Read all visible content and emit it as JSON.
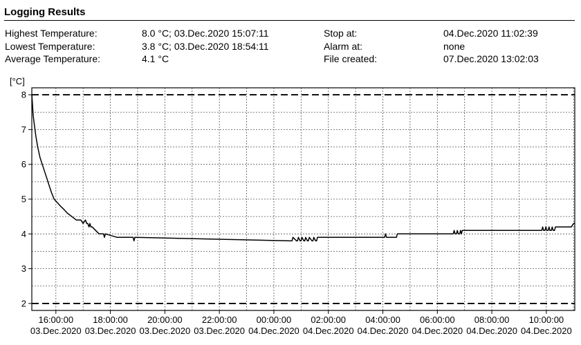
{
  "header": {
    "title": "Logging Results"
  },
  "summary": {
    "highest_label": "Highest Temperature:",
    "highest_value": "8.0 °C; 03.Dec.2020 15:07:11",
    "lowest_label": "Lowest Temperature:",
    "lowest_value": "3.8 °C; 03.Dec.2020 18:54:11",
    "average_label": "Average Temperature:",
    "average_value": "4.1 °C",
    "stop_label": "Stop at:",
    "stop_value": "04.Dec.2020 11:02:39",
    "alarm_label": "Alarm at:",
    "alarm_value": "none",
    "file_label": "File created:",
    "file_value": "07.Dec.2020 13:02:03"
  },
  "chart_data": {
    "type": "line",
    "ylabel": "[°C]",
    "ylim": [
      1.8,
      8.2
    ],
    "yticks": [
      2,
      3,
      4,
      5,
      6,
      7,
      8
    ],
    "xlim": [
      "03.Dec.2020 15:07:00",
      "04.Dec.2020 11:02:39"
    ],
    "xticks": [
      {
        "time": "03.Dec.2020 16:00:00",
        "label_time": "16:00:00",
        "label_date": "03.Dec.2020"
      },
      {
        "time": "03.Dec.2020 18:00:00",
        "label_time": "18:00:00",
        "label_date": "03.Dec.2020"
      },
      {
        "time": "03.Dec.2020 20:00:00",
        "label_time": "20:00:00",
        "label_date": "03.Dec.2020"
      },
      {
        "time": "03.Dec.2020 22:00:00",
        "label_time": "22:00:00",
        "label_date": "03.Dec.2020"
      },
      {
        "time": "04.Dec.2020 00:00:00",
        "label_time": "00:00:00",
        "label_date": "04.Dec.2020"
      },
      {
        "time": "04.Dec.2020 02:00:00",
        "label_time": "02:00:00",
        "label_date": "04.Dec.2020"
      },
      {
        "time": "04.Dec.2020 04:00:00",
        "label_time": "04:00:00",
        "label_date": "04.Dec.2020"
      },
      {
        "time": "04.Dec.2020 06:00:00",
        "label_time": "06:00:00",
        "label_date": "04.Dec.2020"
      },
      {
        "time": "04.Dec.2020 08:00:00",
        "label_time": "08:00:00",
        "label_date": "04.Dec.2020"
      },
      {
        "time": "04.Dec.2020 10:00:00",
        "label_time": "10:00:00",
        "label_date": "04.Dec.2020"
      }
    ],
    "limit_lines": [
      8.0,
      2.0
    ],
    "grid": true,
    "series": [
      {
        "x": [
          "03.Dec.2020 15:07:00",
          "03.Dec.2020 15:08:00",
          "03.Dec.2020 15:10:00",
          "03.Dec.2020 15:13:00",
          "03.Dec.2020 15:16:00",
          "03.Dec.2020 15:20:00",
          "03.Dec.2020 15:25:00",
          "03.Dec.2020 15:30:00",
          "03.Dec.2020 15:35:00",
          "03.Dec.2020 15:40:00",
          "03.Dec.2020 15:45:00",
          "03.Dec.2020 15:50:00",
          "03.Dec.2020 15:56:00",
          "03.Dec.2020 16:03:00",
          "03.Dec.2020 16:10:00",
          "03.Dec.2020 16:18:00",
          "03.Dec.2020 16:25:00",
          "03.Dec.2020 16:35:00",
          "03.Dec.2020 16:45:00",
          "03.Dec.2020 16:55:00",
          "03.Dec.2020 17:00:00",
          "03.Dec.2020 17:05:00",
          "03.Dec.2020 17:08:00",
          "03.Dec.2020 17:10:00",
          "03.Dec.2020 17:13:00",
          "03.Dec.2020 17:15:00",
          "03.Dec.2020 17:17:00",
          "03.Dec.2020 17:20:00",
          "03.Dec.2020 17:35:00",
          "03.Dec.2020 17:45:00",
          "03.Dec.2020 17:47:00",
          "03.Dec.2020 17:49:00",
          "03.Dec.2020 18:15:00",
          "03.Dec.2020 18:50:00",
          "03.Dec.2020 18:52:00",
          "03.Dec.2020 18:54:00",
          "04.Dec.2020 00:38:00",
          "04.Dec.2020 00:40:00",
          "04.Dec.2020 00:42:00",
          "04.Dec.2020 00:50:00",
          "04.Dec.2020 00:52:00",
          "04.Dec.2020 00:54:00",
          "04.Dec.2020 00:58:00",
          "04.Dec.2020 01:00:00",
          "04.Dec.2020 01:02:00",
          "04.Dec.2020 01:06:00",
          "04.Dec.2020 01:08:00",
          "04.Dec.2020 01:10:00",
          "04.Dec.2020 01:14:00",
          "04.Dec.2020 01:16:00",
          "04.Dec.2020 01:18:00",
          "04.Dec.2020 01:24:00",
          "04.Dec.2020 01:26:00",
          "04.Dec.2020 01:28:00",
          "04.Dec.2020 01:32:00",
          "04.Dec.2020 01:34:00",
          "04.Dec.2020 01:36:00",
          "04.Dec.2020 01:38:00",
          "04.Dec.2020 04:04:00",
          "04.Dec.2020 04:06:00",
          "04.Dec.2020 04:08:00",
          "04.Dec.2020 04:30:00",
          "04.Dec.2020 04:32:00",
          "04.Dec.2020 06:35:00",
          "04.Dec.2020 06:37:00",
          "04.Dec.2020 06:39:00",
          "04.Dec.2020 06:42:00",
          "04.Dec.2020 06:44:00",
          "04.Dec.2020 06:46:00",
          "04.Dec.2020 06:49:00",
          "04.Dec.2020 06:51:00",
          "04.Dec.2020 06:53:00",
          "04.Dec.2020 06:55:00",
          "04.Dec.2020 09:50:00",
          "04.Dec.2020 09:52:00",
          "04.Dec.2020 09:54:00",
          "04.Dec.2020 09:57:00",
          "04.Dec.2020 09:59:00",
          "04.Dec.2020 10:01:00",
          "04.Dec.2020 10:04:00",
          "04.Dec.2020 10:06:00",
          "04.Dec.2020 10:08:00",
          "04.Dec.2020 10:11:00",
          "04.Dec.2020 10:13:00",
          "04.Dec.2020 10:15:00",
          "04.Dec.2020 10:18:00",
          "04.Dec.2020 10:20:00",
          "04.Dec.2020 10:22:00",
          "04.Dec.2020 10:55:00",
          "04.Dec.2020 11:00:00",
          "04.Dec.2020 11:02:39"
        ],
        "y": [
          8.0,
          7.8,
          7.4,
          7.1,
          6.8,
          6.5,
          6.2,
          6.0,
          5.8,
          5.6,
          5.4,
          5.2,
          5.0,
          4.9,
          4.8,
          4.7,
          4.6,
          4.5,
          4.4,
          4.4,
          4.3,
          4.4,
          4.3,
          4.3,
          4.2,
          4.3,
          4.2,
          4.2,
          4.0,
          4.0,
          3.9,
          4.0,
          3.9,
          3.9,
          3.8,
          3.9,
          3.8,
          3.8,
          3.9,
          3.8,
          3.8,
          3.9,
          3.8,
          3.8,
          3.9,
          3.8,
          3.8,
          3.9,
          3.8,
          3.8,
          3.9,
          3.8,
          3.8,
          3.9,
          3.8,
          3.8,
          3.9,
          3.9,
          3.9,
          4.0,
          3.9,
          3.9,
          4.0,
          4.0,
          4.1,
          4.0,
          4.0,
          4.1,
          4.0,
          4.0,
          4.1,
          4.0,
          4.1,
          4.1,
          4.2,
          4.1,
          4.1,
          4.2,
          4.1,
          4.1,
          4.2,
          4.1,
          4.1,
          4.2,
          4.1,
          4.1,
          4.2,
          4.2,
          4.2,
          4.3,
          4.3
        ]
      }
    ]
  }
}
